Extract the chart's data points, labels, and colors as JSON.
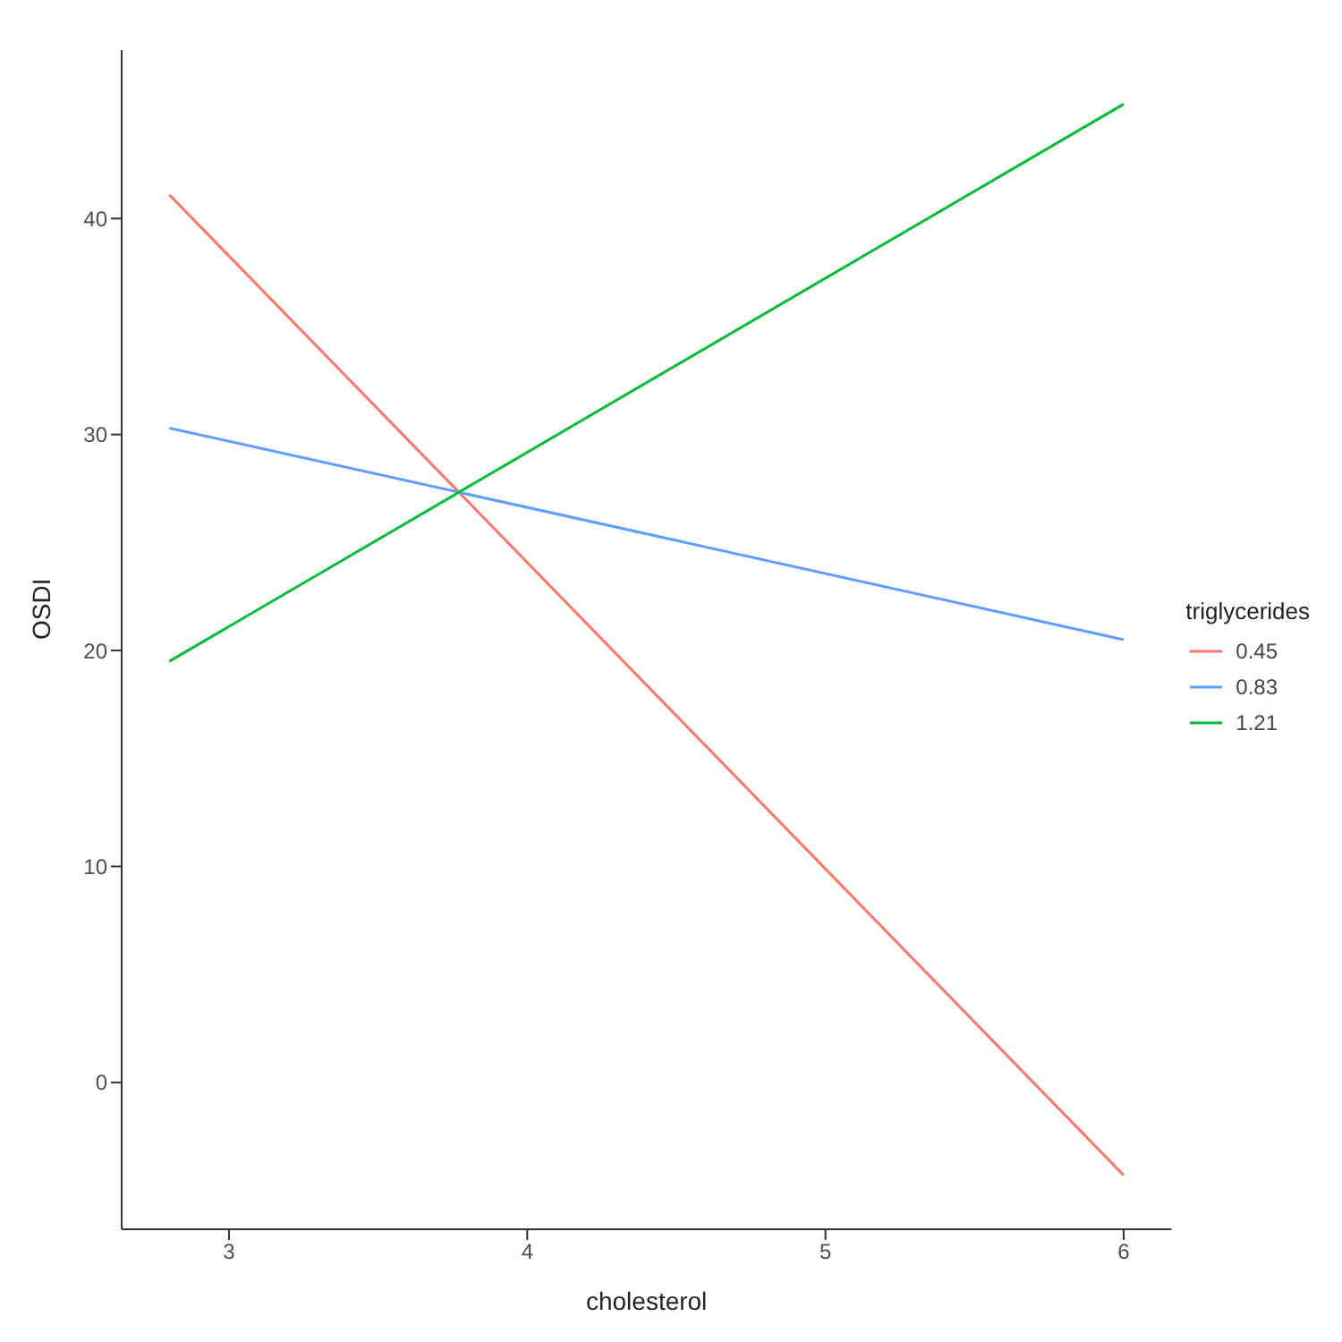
{
  "chart_data": {
    "type": "line",
    "xlabel": "cholesterol",
    "ylabel": "OSDI",
    "legend_title": "triglycerides",
    "legend": "right",
    "grid": false,
    "marker": "none",
    "line_style": "solid",
    "x": [
      2.8,
      6
    ],
    "xlim": [
      2.64,
      6.16
    ],
    "xticks": [
      3,
      4,
      5,
      6
    ],
    "ylim": [
      -6.8,
      47.8
    ],
    "yticks": [
      0,
      10,
      20,
      30,
      40
    ],
    "series": [
      {
        "name": "0.45",
        "color": "#f8766d",
        "values": [
          41.1,
          -4.3
        ]
      },
      {
        "name": "0.83",
        "color": "#619cff",
        "values": [
          30.3,
          20.5
        ]
      },
      {
        "name": "1.21",
        "color": "#00ba38",
        "values": [
          19.5,
          45.3
        ]
      }
    ]
  }
}
